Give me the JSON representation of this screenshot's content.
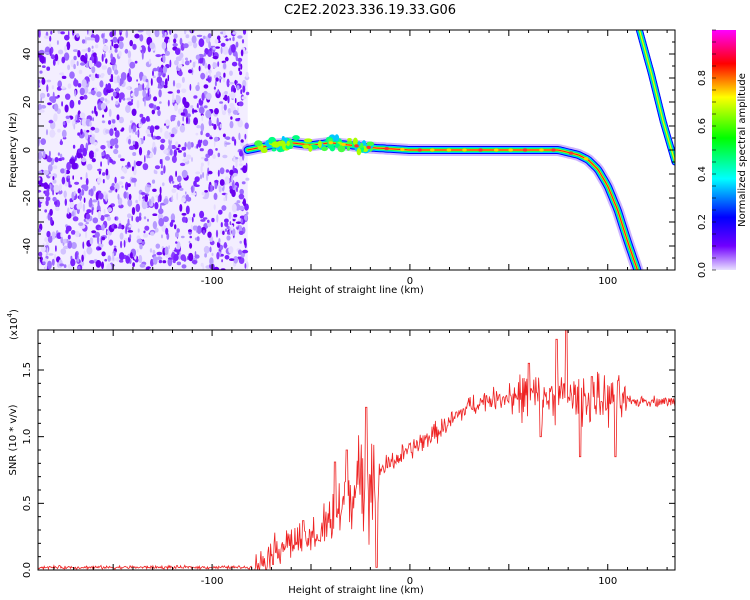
{
  "figure": {
    "title": "C2E2.2023.336.19.33.G06"
  },
  "chart_data": [
    {
      "type": "heatmap",
      "xlabel": "Height of straight line (km)",
      "ylabel": "Frequency (Hz)",
      "xlim": [
        -188,
        134
      ],
      "ylim": [
        -50,
        50
      ],
      "xticks": [
        -100,
        0,
        100
      ],
      "xtick_labels": [
        "-100",
        "0",
        "100"
      ],
      "yticks": [
        -40,
        -20,
        0,
        20,
        40
      ],
      "ytick_labels": [
        "-40",
        "-20",
        "0",
        "20",
        "40"
      ],
      "colorbar": {
        "label": "Normalized spectral amplitude",
        "range": [
          0,
          1
        ],
        "ticks": [
          0.0,
          0.2,
          0.4,
          0.6,
          0.8
        ],
        "tick_labels": [
          "0.0",
          "0.2",
          "0.4",
          "0.6",
          "0.8"
        ],
        "colormap": [
          "#e8e0ff",
          "#7000ff",
          "#0000ff",
          "#00ffff",
          "#00ff00",
          "#ffff00",
          "#ff0000",
          "#ff00ff"
        ]
      },
      "noise_region": {
        "x": [
          -188,
          -82
        ]
      },
      "signal_trace": {
        "x": [
          -82,
          -70,
          -60,
          -50,
          -40,
          -30,
          -20,
          -10,
          0,
          20,
          40,
          60,
          75,
          85,
          90,
          95,
          100,
          105,
          110,
          115
        ],
        "y": [
          0,
          2,
          3,
          2,
          3,
          2,
          1,
          0.5,
          0,
          0,
          0,
          0,
          0,
          -2,
          -4,
          -8,
          -15,
          -25,
          -38,
          -50
        ]
      },
      "aliased_trace": {
        "x": [
          116,
          122,
          128,
          134
        ],
        "y": [
          50,
          32,
          12,
          -5
        ]
      }
    },
    {
      "type": "line",
      "xlabel": "Height of straight line (km)",
      "ylabel": "SNR (10 * v/v)",
      "multiplier_label": "(x10",
      "multiplier_exponent": "4",
      "xlim": [
        -188,
        134
      ],
      "ylim": [
        0,
        1.8
      ],
      "xticks": [
        -100,
        0,
        100
      ],
      "xtick_labels": [
        "-100",
        "0",
        "100"
      ],
      "yticks": [
        0.0,
        0.5,
        1.0,
        1.5
      ],
      "ytick_labels": [
        "0.0",
        "0.5",
        "1.0",
        "1.5"
      ],
      "color": "#ee2222",
      "baseline": {
        "x": [
          -188,
          -80,
          -75,
          -70,
          -65,
          -60,
          -55,
          -50,
          -45,
          -40,
          -35,
          -30,
          -25,
          -20,
          -15,
          -10,
          -5,
          0,
          5,
          10,
          15,
          20,
          25,
          30,
          40,
          50,
          60,
          70,
          80,
          90,
          100,
          110,
          120,
          134
        ],
        "y": [
          0.02,
          0.02,
          0.06,
          0.14,
          0.18,
          0.22,
          0.2,
          0.24,
          0.3,
          0.35,
          0.45,
          0.58,
          0.6,
          0.7,
          0.75,
          0.8,
          0.85,
          0.9,
          0.95,
          1.0,
          1.05,
          1.1,
          1.17,
          1.23,
          1.28,
          1.3,
          1.31,
          1.3,
          1.29,
          1.28,
          1.27,
          1.26,
          1.27,
          1.26
        ]
      },
      "peaks": [
        {
          "x": -54,
          "y": 0.37
        },
        {
          "x": -46,
          "y": 0.22
        },
        {
          "x": -38,
          "y": 0.81
        },
        {
          "x": -32,
          "y": 0.9
        },
        {
          "x": -22,
          "y": 1.22
        },
        {
          "x": -17,
          "y": 0.02
        },
        {
          "x": 60,
          "y": 1.55
        },
        {
          "x": 66,
          "y": 1.0
        },
        {
          "x": 74,
          "y": 1.73
        },
        {
          "x": 79,
          "y": 1.8
        },
        {
          "x": 86,
          "y": 0.85
        },
        {
          "x": 92,
          "y": 1.45
        },
        {
          "x": 104,
          "y": 0.85
        }
      ]
    }
  ]
}
